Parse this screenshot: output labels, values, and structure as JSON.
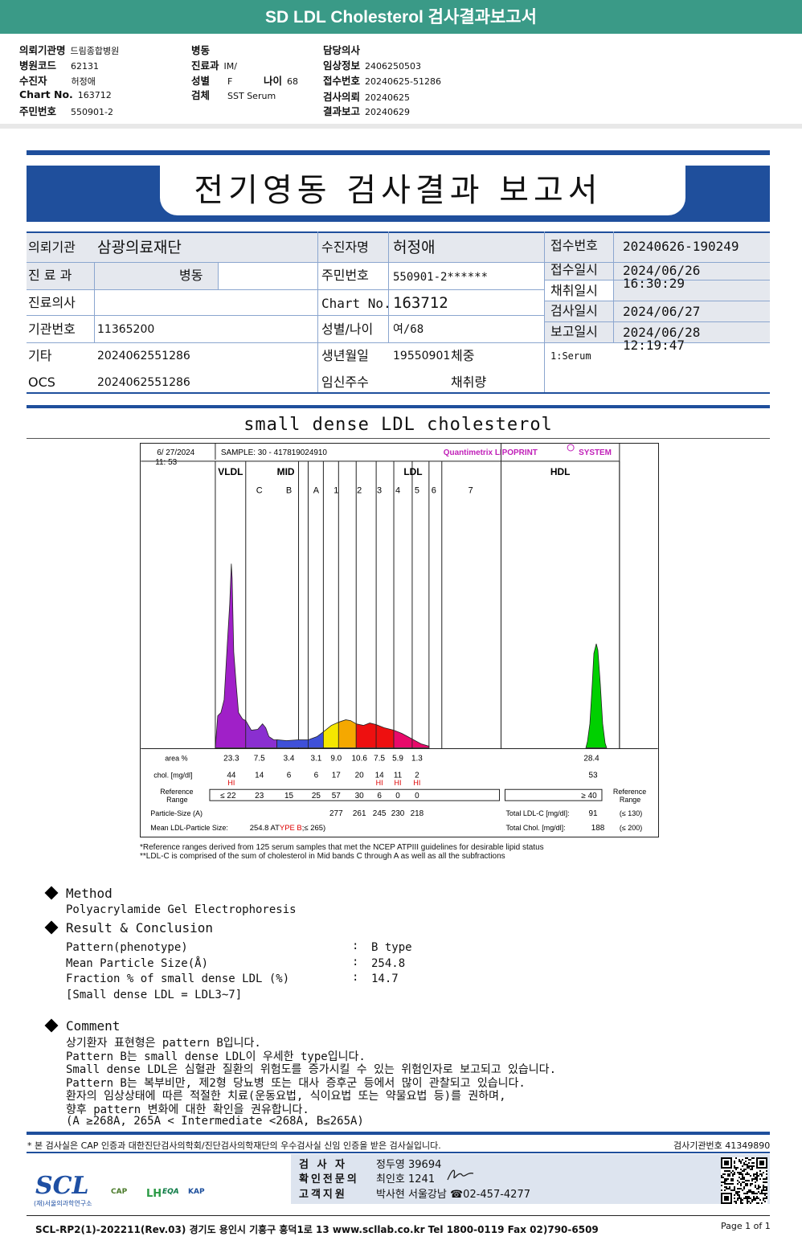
{
  "header": {
    "title": "SD LDL Cholesterol 검사결과보고서",
    "rows": [
      {
        "l1": "의뢰기관명",
        "v1": "드림종합병원",
        "l2": "병동",
        "v2": "",
        "l3": "담당의사",
        "v3": ""
      },
      {
        "l1": "병원코드",
        "v1": "62131",
        "l2": "진료과",
        "v2": "IM/",
        "l3": "임상정보",
        "v3": "2406250503"
      },
      {
        "l1": "수진자",
        "v1": "허정애",
        "l2": "성별",
        "v2": "F",
        "l2b": "나이",
        "v2b": "68",
        "l3": "접수번호",
        "v3": "20240625-51286"
      },
      {
        "l1": "Chart No.",
        "v1": "163712",
        "l2": "검체",
        "v2": "SST Serum",
        "l3": "검사의뢰",
        "v3": "20240625"
      },
      {
        "l1": "주민번호",
        "v1": "550901-2",
        "l2": "",
        "v2": "",
        "l3": "결과보고",
        "v3": "20240629"
      }
    ]
  },
  "report_title": "전기영동 검사결과 보고서",
  "info": {
    "referrer_label": "의뢰기관",
    "referrer": "삼광의료재단",
    "patient_label": "수진자명",
    "patient": "허정애",
    "dept_label": "진 료 과",
    "dept": "병동",
    "rrn_label": "주민번호",
    "rrn": "550901-2******",
    "doctor_label": "진료의사",
    "doctor": "",
    "chart_label": "Chart No.",
    "chart": "163712",
    "inst_label": "기관번호",
    "inst": "11365200",
    "sexage_label": "성별/나이",
    "sexage": "여/68",
    "etc_label": "기타",
    "etc": "2024062551286",
    "birth_label": "생년월일",
    "birth": "19550901",
    "weight_label": "체중",
    "weight": "",
    "ocs_label": "OCS",
    "ocs": "2024062551286",
    "preg_label": "임신주수",
    "preg": "",
    "vol_label": "채취량",
    "vol": "",
    "recvno_label": "접수번호",
    "recvno": "20240626-190249",
    "recvdt_label": "접수일시",
    "recvdt": "2024/06/26 16:30:29",
    "colldt_label": "채취일시",
    "colldt": "",
    "testdt_label": "검사일시",
    "testdt": "2024/06/27",
    "reportdt_label": "보고일시",
    "reportdt": "2024/06/28 12:19:47",
    "specimen": "1:Serum"
  },
  "section_title": "small dense LDL cholesterol",
  "chart_data": {
    "type": "electrophoresis",
    "date": "6/ 27/2024",
    "time": "11: 53",
    "sample": "SAMPLE:   30 - 417819024910",
    "brand": "Quantimetrix LIPOPRINT",
    "brand2": "SYSTEM",
    "band_groups": [
      "VLDL",
      "MID",
      "LDL",
      "HDL"
    ],
    "mid_bands": [
      "C",
      "B",
      "A"
    ],
    "ldl_bands": [
      "1",
      "2",
      "3",
      "4",
      "5",
      "6",
      "7"
    ],
    "row_labels": {
      "area": "area %",
      "chol": "chol. [mg/dl]",
      "ref": "Reference",
      "ref2": "Range",
      "particle": "Particle-Size (A)",
      "mean": "Mean LDL-Particle Size:"
    },
    "area_pct": [
      "23.3",
      "7.5",
      "3.4",
      "3.1",
      "9.0",
      "10.6",
      "7.5",
      "5.9",
      "1.3"
    ],
    "hdl_area": "28.4",
    "chol": [
      "44",
      "14",
      "6",
      "6",
      "17",
      "20",
      "14",
      "11",
      "2"
    ],
    "chol_flags": [
      "HI",
      "",
      "",
      "",
      "",
      "",
      "HI",
      "HI",
      "HI"
    ],
    "hdl_chol": "53",
    "ref_range": [
      "≤ 22",
      "23",
      "15",
      "25",
      "57",
      "30",
      "6",
      "0",
      "0"
    ],
    "hdl_ref": "≥  40",
    "particle_size": [
      "277",
      "261",
      "245",
      "230",
      "218"
    ],
    "mean_size": "254.8 AT",
    "mean_type": "YPE B",
    "mean_tail": ";≤ 265)",
    "total_ldl_label": "Total LDL-C [mg/dl]:",
    "total_ldl": "91",
    "total_ldl_ref": "(≤ 130)",
    "total_chol_label": "Total Chol. [mg/dl]:",
    "total_chol": "188",
    "total_chol_ref": "(≤ 200)"
  },
  "footnotes": [
    "*Reference ranges derived from 125 serum samples that met the NCEP ATPIII guidelines for desirable lipid status",
    "**LDL-C is comprised of the sum of cholesterol in Mid bands C through A as well as all the subfractions"
  ],
  "method": {
    "heading": "Method",
    "text": "Polyacrylamide Gel Electrophoresis"
  },
  "result": {
    "heading": "Result & Conclusion",
    "rows": [
      {
        "k": "Pattern(phenotype)",
        "v": "B type"
      },
      {
        "k": "Mean Particle Size(Å)",
        "v": "254.8"
      },
      {
        "k": "Fraction % of small dense LDL (%)",
        "v": "14.7"
      }
    ],
    "note": "[Small dense LDL = LDL3~7]"
  },
  "comment": {
    "heading": "Comment",
    "lines": [
      "상기환자 표현형은 pattern B입니다.",
      "Pattern B는 small dense LDL이 우세한 type입니다.",
      "Small dense LDL은 심혈관 질환의 위험도를 증가시킬 수 있는 위험인자로 보고되고 있습니다.",
      "Pattern B는 복부비만, 제2형 당뇨병 또는 대사 증후군 등에서 많이 관찰되고 있습니다.",
      "환자의 임상상태에 따른 적절한 치료(운동요법, 식이요법 또는 약물요법 등)를 권하며,",
      "향후 pattern 변화에 대한 확인을 권유합니다.",
      "(A ≥268A, 265A < Intermediate <268A, B≤265A)"
    ]
  },
  "footer": {
    "cert": "* 본 검사실은 CAP 인증과 대한진단검사의학회/진단검사의학재단의 우수검사실 신임 인증을 받은 검사실입니다.",
    "lab_no": "검사기관번호  41349890",
    "examiner_label": "검 사 자",
    "examiner": "정두영 39694",
    "confirm_label": "확인전문의",
    "confirm": "최인호 1241",
    "support_label": "고객지원",
    "support": "박사현 서울강남 ☎02-457-4277",
    "logo": "SCL",
    "logo_sub": "(재)서울의과학연구소",
    "accr1": "CAP",
    "accr2": "LH",
    "accr3": "EQA",
    "accr4": "KAP",
    "address": "SCL-RP2(1)-202211(Rev.03)  경기도 용인시 기흥구 흥덕1로 13  www.scllab.co.kr   Tel 1800-0119   Fax 02)790-6509",
    "page": "Page 1 of 1"
  }
}
